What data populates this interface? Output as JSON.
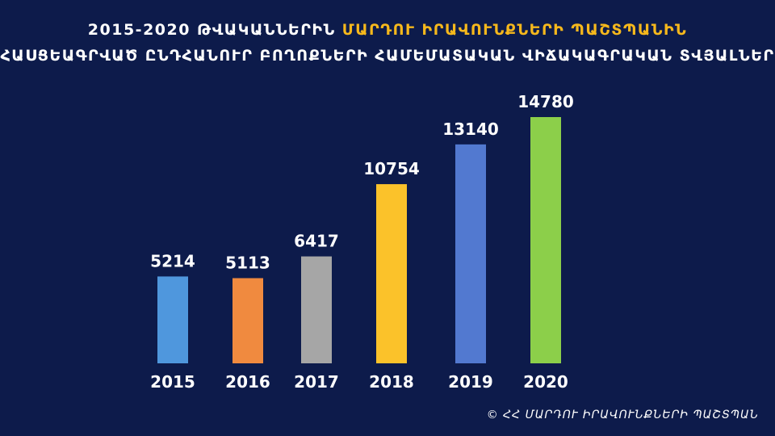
{
  "header": {
    "line1_prefix": "2015-2020 ԹՎԱԿԱՆՆԵՐԻՆ ",
    "line1_highlight": "ՄԱՐԴՈՒ ԻՐԱՎՈՒՆՔՆԵՐԻ ՊԱՇՏՊԱՆԻՆ",
    "line2": "ՀԱՍՑԵԱԳՐՎԱԾ ԸՆԴՀԱՆՈՒՐ ԲՈՂՈՔՆԵՐԻ ՀԱՄԵՄԱՏԱԿԱՆ ՎԻՃԱԿԱԳՐԱԿԱՆ ՏՎՅԱԼՆԵՐ"
  },
  "footer": {
    "credit": "© ՀՀ ՄԱՐԴՈՒ ԻՐԱՎՈՒՆՔՆԵՐԻ ՊԱՇՏՊԱՆ"
  },
  "colors": {
    "background": "#0d1b4b",
    "highlight": "#f6b81c",
    "text": "#ffffff"
  },
  "chart_data": {
    "type": "bar",
    "title": "",
    "xlabel": "",
    "ylabel": "",
    "categories": [
      "2015",
      "2016",
      "2017",
      "2018",
      "2019",
      "2020"
    ],
    "values": [
      5214,
      5113,
      6417,
      10754,
      13140,
      14780
    ],
    "bar_colors": [
      "#4f97dd",
      "#f08a3f",
      "#a6a6a6",
      "#fbc22a",
      "#5279d0",
      "#8ccf4a"
    ],
    "value_labels": [
      "5214",
      "5113",
      "6417",
      "10754",
      "13140",
      "14780"
    ],
    "grid": false,
    "legend": "none"
  }
}
